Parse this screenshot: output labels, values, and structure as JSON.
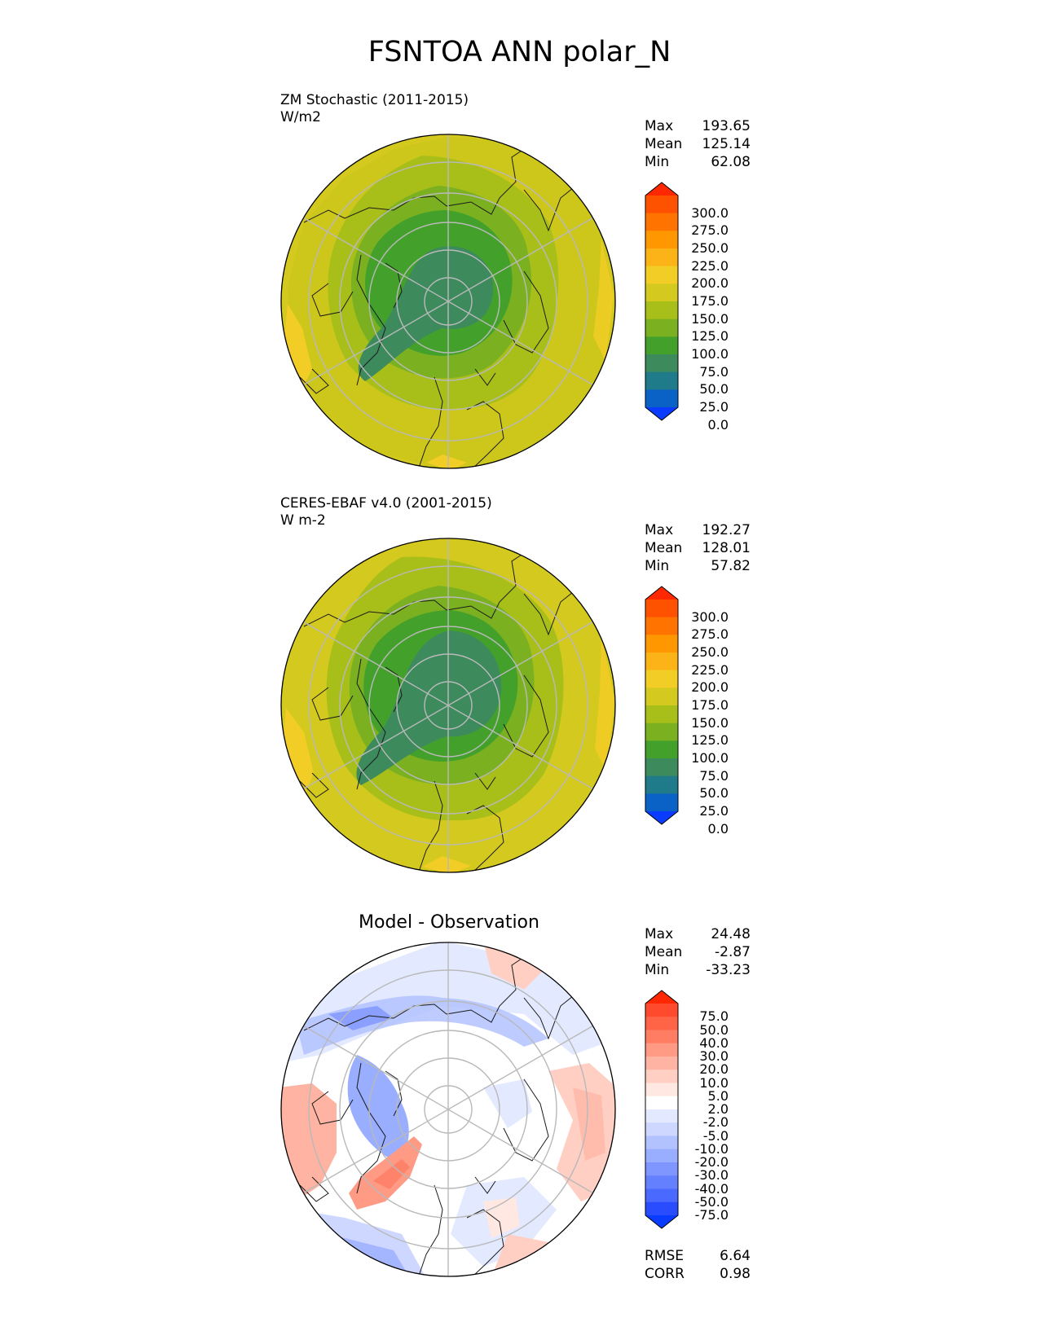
{
  "title": "FSNTOA ANN polar_N",
  "panels": [
    {
      "id": "test",
      "label_line1": "ZM Stochastic (2011-2015)",
      "label_line2": "W/m2",
      "stats": [
        {
          "name": "Max",
          "value": "193.65"
        },
        {
          "name": "Mean",
          "value": "125.14"
        },
        {
          "name": "Min",
          "value": "62.08"
        }
      ],
      "colorbar": {
        "ticks": [
          "300.0",
          "275.0",
          "250.0",
          "225.0",
          "200.0",
          "175.0",
          "150.0",
          "125.0",
          "100.0",
          "75.0",
          "50.0",
          "25.0",
          "0.0"
        ],
        "colors": [
          "#ff2800",
          "#ff5200",
          "#ff7400",
          "#ff9800",
          "#fbb318",
          "#f2cd26",
          "#d4c91e",
          "#a8bf1a",
          "#7bb121",
          "#43a12b",
          "#3d8a5d",
          "#1f7a8a",
          "#0b62c6",
          "#0a3cff"
        ]
      }
    },
    {
      "id": "ref",
      "label_line1": "CERES-EBAF v4.0 (2001-2015)",
      "label_line2": "W m-2",
      "stats": [
        {
          "name": "Max",
          "value": "192.27"
        },
        {
          "name": "Mean",
          "value": "128.01"
        },
        {
          "name": "Min",
          "value": "57.82"
        }
      ],
      "colorbar": {
        "ticks": [
          "300.0",
          "275.0",
          "250.0",
          "225.0",
          "200.0",
          "175.0",
          "150.0",
          "125.0",
          "100.0",
          "75.0",
          "50.0",
          "25.0",
          "0.0"
        ],
        "colors": [
          "#ff2800",
          "#ff5200",
          "#ff7400",
          "#ff9800",
          "#fbb318",
          "#f2cd26",
          "#d4c91e",
          "#a8bf1a",
          "#7bb121",
          "#43a12b",
          "#3d8a5d",
          "#1f7a8a",
          "#0b62c6",
          "#0a3cff"
        ]
      }
    },
    {
      "id": "diff",
      "subtitle": "Model - Observation",
      "stats": [
        {
          "name": "Max",
          "value": "24.48"
        },
        {
          "name": "Mean",
          "value": "-2.87"
        },
        {
          "name": "Min",
          "value": "-33.23"
        }
      ],
      "colorbar": {
        "ticks": [
          "75.0",
          "50.0",
          "40.0",
          "30.0",
          "20.0",
          "10.0",
          "5.0",
          "2.0",
          "-2.0",
          "-5.0",
          "-10.0",
          "-20.0",
          "-30.0",
          "-40.0",
          "-50.0",
          "-75.0"
        ],
        "colors": [
          "#ff2800",
          "#ff4a2e",
          "#ff6446",
          "#ff7d63",
          "#ff9a85",
          "#ffb3a3",
          "#ffcfc4",
          "#ffe7e2",
          "#ffffff",
          "#e3e9ff",
          "#cdd7ff",
          "#b2c2ff",
          "#9aaeff",
          "#7f95ff",
          "#6480ff",
          "#4a69ff",
          "#2a4cff",
          "#0a3cff"
        ]
      },
      "metrics": [
        {
          "name": "RMSE",
          "value": "6.64"
        },
        {
          "name": "CORR",
          "value": "0.98"
        }
      ]
    }
  ],
  "chart_data": [
    {
      "type": "heatmap",
      "projection": "north polar stereographic",
      "title": "ZM Stochastic (2011-2015)",
      "units": "W/m2",
      "max": 193.65,
      "mean": 125.14,
      "min": 62.08,
      "levels": [
        0,
        25,
        50,
        75,
        100,
        125,
        150,
        175,
        200,
        225,
        250,
        275,
        300
      ]
    },
    {
      "type": "heatmap",
      "projection": "north polar stereographic",
      "title": "CERES-EBAF v4.0 (2001-2015)",
      "units": "W m-2",
      "max": 192.27,
      "mean": 128.01,
      "min": 57.82,
      "levels": [
        0,
        25,
        50,
        75,
        100,
        125,
        150,
        175,
        200,
        225,
        250,
        275,
        300
      ]
    },
    {
      "type": "heatmap",
      "projection": "north polar stereographic",
      "title": "Model - Observation",
      "max": 24.48,
      "mean": -2.87,
      "min": -33.23,
      "rmse": 6.64,
      "corr": 0.98,
      "levels": [
        -75,
        -50,
        -40,
        -30,
        -20,
        -10,
        -5,
        -2,
        2,
        5,
        10,
        20,
        30,
        40,
        50,
        75
      ]
    }
  ]
}
